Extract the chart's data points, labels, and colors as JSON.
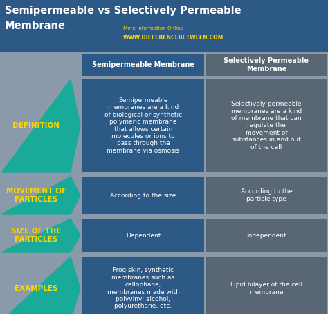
{
  "title_line1": "Semipermeable vs Selectively Permeable",
  "title_line2": "Membrane",
  "title_color": "#FFFFFF",
  "title_bg": "#2d5986",
  "subtitle": "More Information Online",
  "website": "WWW.DIFFERENCEBETWEEN.COM",
  "website_color": "#FFD700",
  "subtitle_color": "#FFD700",
  "header_bg": "#2d5986",
  "header_text_color": "#FFFFFF",
  "col1_header": "Semipermeable Membrane",
  "col2_header": "Selectively Permeable\nMembrane",
  "row_bg_color": "#8a9aaa",
  "col1_cell_bg": "#2d5986",
  "col2_cell_bg": "#596673",
  "arrow_bg": "#1aaa9a",
  "arrow_text_color": "#FFD700",
  "cell_text_color": "#FFFFFF",
  "fig_w": 4.74,
  "fig_h": 4.55,
  "dpi": 100,
  "rows": [
    {
      "label": "DEFINITION",
      "col1": "Semipermeable\nmembranes are a kind\nof biological or synthetic\npolymeric membrane\nthat allows certain\nmolecules or ions to\npass through the\nmembrane via osmosis",
      "col2": "Selectively permeable\nmembranes are a kind\nof membrane that can\nregulate the\nmovement of\nsubstances in and out\nof the cell"
    },
    {
      "label": "MOVEMENT OF\nPARTICLES",
      "col1": "According to the size",
      "col2": "According to the\nparticle type"
    },
    {
      "label": "SIZE OF THE\nPARTICLES",
      "col1": "Dependent",
      "col2": "Independent"
    },
    {
      "label": "EXAMPLES",
      "col1": "Frog skin, synthetic\nmembranes such as\ncellophane,\nmembranes made with\npolyvinyl alcohol,\npolyurethane, etc.",
      "col2": "Lipid bilayer of the cell\nmembrane"
    }
  ]
}
